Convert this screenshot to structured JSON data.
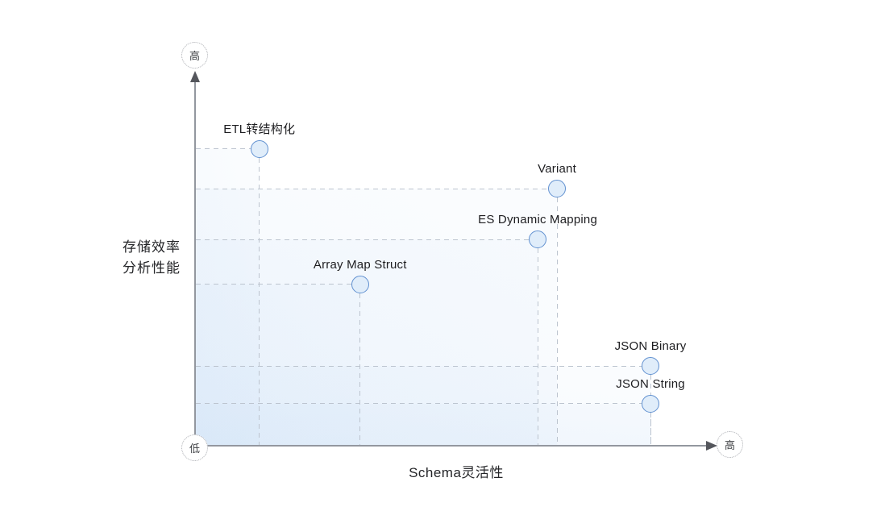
{
  "chart_data": {
    "type": "scatter",
    "title": "",
    "xlabel": "Schema灵活性",
    "ylabel_lines": [
      "存储效率",
      "分析性能"
    ],
    "axis_badges": {
      "y_high": "高",
      "origin_low": "低",
      "x_high": "高"
    },
    "axis_scale_note": "qualitative axes from 低 (low) at origin to 高 (high) at arrow tips",
    "xlim": [
      0,
      100
    ],
    "ylim": [
      0,
      100
    ],
    "grid": "dashed guide lines from each point to both axes, stacked translucent blue regions from origin to each point",
    "legend_position": "none",
    "points": [
      {
        "label": "ETL转结构化",
        "x": 12.3,
        "y": 79.7
      },
      {
        "label": "Variant",
        "x": 69.3,
        "y": 69.0
      },
      {
        "label": "ES Dynamic Mapping",
        "x": 65.6,
        "y": 55.4
      },
      {
        "label": "Array Map Struct",
        "x": 31.6,
        "y": 43.3
      },
      {
        "label": "JSON Binary",
        "x": 87.2,
        "y": 21.4
      },
      {
        "label": "JSON String",
        "x": 87.2,
        "y": 11.3
      }
    ],
    "styles": {
      "point_fill": "#e0edfa",
      "point_stroke": "#6090d0",
      "region_tint": "#c7ddf5",
      "dash_color": "#bcc4cf",
      "axis_color": "#93979f",
      "arrow_color": "#54565c",
      "text_color": "#1d1d20"
    }
  }
}
